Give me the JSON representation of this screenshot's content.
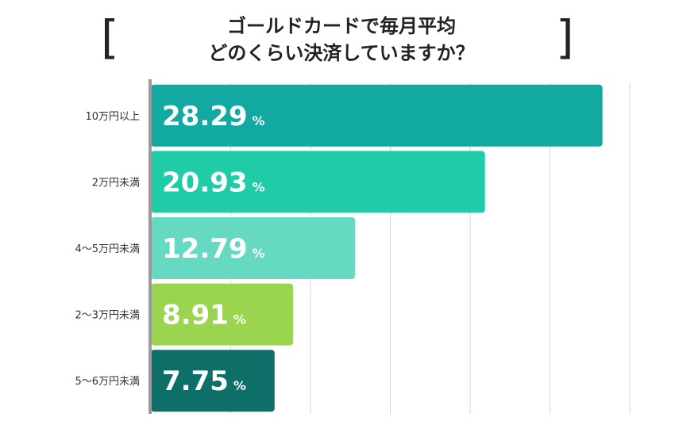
{
  "header": {
    "bracket_left": "[",
    "bracket_right": "]",
    "title_line1": "ゴールドカードで毎月平均",
    "title_line2": "どのくらい決済していますか？"
  },
  "chart_data": {
    "type": "bar",
    "orientation": "horizontal",
    "categories": [
      "10万円以上",
      "2万円未満",
      "4〜5万円未満",
      "2〜3万円未満",
      "5〜6万円未満"
    ],
    "values": [
      28.29,
      20.93,
      12.79,
      8.91,
      7.75
    ],
    "value_labels": [
      "28.29",
      "20.93",
      "12.79",
      "8.91",
      "7.75"
    ],
    "unit": "%",
    "colors": [
      "#12a9a3",
      "#1fcca7",
      "#66d9c3",
      "#9bd54f",
      "#0e6e68"
    ],
    "xlim": [
      0,
      30
    ],
    "gridlines": [
      5,
      10,
      15,
      20,
      25,
      30
    ],
    "grid": true,
    "legend": "none"
  }
}
